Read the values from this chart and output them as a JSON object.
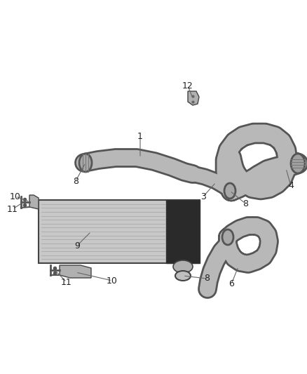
{
  "bg_color": "#ffffff",
  "line_color": "#555555",
  "label_color": "#222222",
  "fig_width": 4.38,
  "fig_height": 5.33,
  "dpi": 100,
  "hose_fill": "#b8b8b8",
  "hose_edge": "#555555",
  "ic_fill": "#c8c8c8",
  "ic_edge": "#444444",
  "ic_fin": "#aaaaaa",
  "ic_cap_fill": "#2a2a2a",
  "bracket_fill": "#b0b0b0",
  "bracket_edge": "#444444"
}
